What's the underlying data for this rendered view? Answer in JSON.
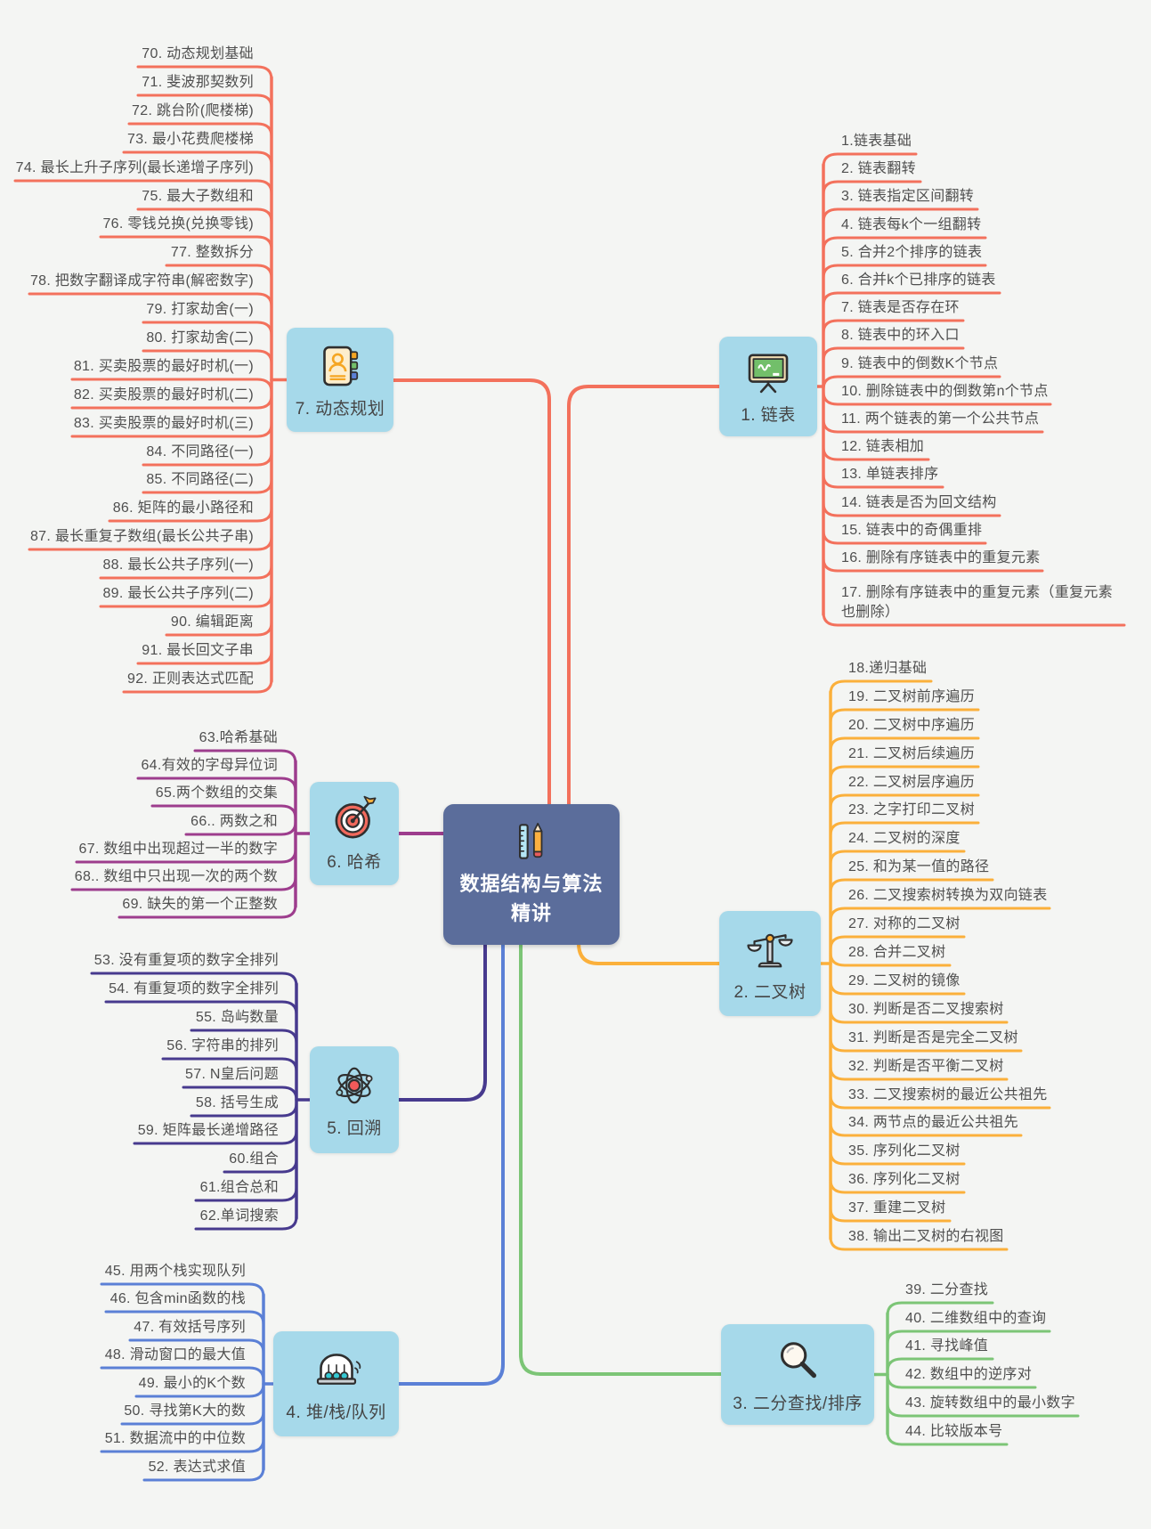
{
  "ui": {
    "background": "#f4f5f3",
    "node_bg": "#a6d9ea",
    "item_text_color": "#4f4f4f",
    "central_bg": "#5b6d9b",
    "central_text_color": "#ffffff"
  },
  "central": {
    "title": "数据结构与算法精讲",
    "icon": "ruler-pencil-icon"
  },
  "branches": [
    {
      "id": "linked-list",
      "label": "1. 链表",
      "icon": "blackboard-icon",
      "color": "#f3715c",
      "items": [
        "1.链表基础",
        "2. 链表翻转",
        "3. 链表指定区间翻转",
        "4. 链表每k个一组翻转",
        "5. 合并2个排序的链表",
        "6. 合并k个已排序的链表",
        "7. 链表是否存在环",
        "8. 链表中的环入口",
        "9. 链表中的倒数K个节点",
        "10. 删除链表中的倒数第n个节点",
        "11. 两个链表的第一个公共节点",
        "12. 链表相加",
        "13. 单链表排序",
        "14. 链表是否为回文结构",
        "15. 链表中的奇偶重排",
        "16. 删除有序链表中的重复元素",
        "17. 删除有序链表中的重复元素（重复元素也删除）"
      ]
    },
    {
      "id": "binary-tree",
      "label": "2. 二叉树",
      "icon": "balance-scale-icon",
      "color": "#fbb03b",
      "items": [
        "18.递归基础",
        "19. 二叉树前序遍历",
        "20. 二叉树中序遍历",
        "21. 二叉树后续遍历",
        "22. 二叉树层序遍历",
        "23. 之字打印二叉树",
        "24. 二叉树的深度",
        "25. 和为某一值的路径",
        "26. 二叉搜索树转换为双向链表",
        "27. 对称的二叉树",
        "28. 合并二叉树",
        "29. 二叉树的镜像",
        "30. 判断是否二叉搜索树",
        "31. 判断是否是完全二叉树",
        "32. 判断是否平衡二叉树",
        "33. 二叉搜索树的最近公共祖先",
        "34. 两节点的最近公共祖先",
        "35. 序列化二叉树",
        "36. 序列化二叉树",
        "37. 重建二叉树",
        "38. 输出二叉树的右视图"
      ]
    },
    {
      "id": "binary-search-sort",
      "label": "3. 二分查找/排序",
      "icon": "magnifier-icon",
      "color": "#7cc576",
      "items": [
        "39. 二分查找",
        "40. 二维数组中的查询",
        "41. 寻找峰值",
        "42. 数组中的逆序对",
        "43. 旋转数组中的最小数字",
        "44. 比较版本号"
      ]
    },
    {
      "id": "heap-stack-queue",
      "label": "4. 堆/栈/队列",
      "icon": "newton-cradle-icon",
      "color": "#5b80d6",
      "items": [
        "45. 用两个栈实现队列",
        "46. 包含min函数的栈",
        "47. 有效括号序列",
        "48. 滑动窗口的最大值",
        "49. 最小的K个数",
        "50. 寻找第K大的数",
        "51. 数据流中的中位数",
        "52. 表达式求值"
      ]
    },
    {
      "id": "backtracking",
      "label": "5. 回溯",
      "icon": "atom-icon",
      "color": "#473a8e",
      "items": [
        "53. 没有重复项的数字全排列",
        "54. 有重复项的数字全排列",
        "55. 岛屿数量",
        "56. 字符串的排列",
        "57. N皇后问题",
        "58. 括号生成",
        "59. 矩阵最长递增路径",
        "60.组合",
        "61.组合总和",
        "62.单词搜索"
      ]
    },
    {
      "id": "hash",
      "label": "6. 哈希",
      "icon": "dartboard-icon",
      "color": "#9d3d8d",
      "items": [
        "63.哈希基础",
        "64.有效的字母异位词",
        "65.两个数组的交集",
        "66.. 两数之和",
        "67. 数组中出现超过一半的数字",
        "68.. 数组中只出现一次的两个数",
        "69. 缺失的第一个正整数"
      ]
    },
    {
      "id": "dynamic-programming",
      "label": "7. 动态规划",
      "icon": "contact-book-icon",
      "color": "#f3715c",
      "items": [
        "70. 动态规划基础",
        "71. 斐波那契数列",
        "72. 跳台阶(爬楼梯)",
        "73. 最小花费爬楼梯",
        "74. 最长上升子序列(最长递增子序列)",
        "75. 最大子数组和",
        "76. 零钱兑换(兑换零钱)",
        "77. 整数拆分",
        "78. 把数字翻译成字符串(解密数字)",
        "79. 打家劫舍(一)",
        "80. 打家劫舍(二)",
        "81. 买卖股票的最好时机(一)",
        "82. 买卖股票的最好时机(二)",
        "83. 买卖股票的最好时机(三)",
        "84. 不同路径(一)",
        "85. 不同路径(二)",
        "86. 矩阵的最小路径和",
        "87. 最长重复子数组(最长公共子串)",
        "88. 最长公共子序列(一)",
        "89. 最长公共子序列(二)",
        "90. 编辑距离",
        "91. 最长回文子串",
        "92. 正则表达式匹配"
      ]
    }
  ]
}
